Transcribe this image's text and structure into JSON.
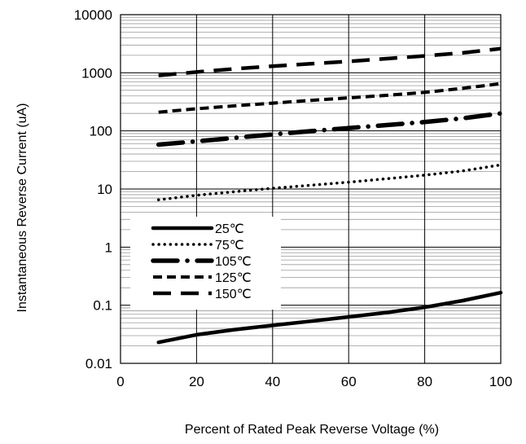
{
  "chart_data": {
    "type": "line",
    "title": "",
    "xlabel": "Percent of Rated Peak Reverse Voltage (%)",
    "ylabel": "Instantaneous Reverse Current (uA)",
    "xlim": [
      0,
      100
    ],
    "ylim": [
      0.01,
      10000
    ],
    "y_scale": "log",
    "grid": true,
    "legend_position": "center-left",
    "x_ticks": [
      "0",
      "20",
      "40",
      "60",
      "80",
      "100"
    ],
    "y_ticks": [
      "0.01",
      "0.1",
      "1",
      "10",
      "100",
      "1000",
      "10000"
    ],
    "series": [
      {
        "name": "25℃",
        "style": "solid",
        "x": [
          10,
          20,
          30,
          40,
          50,
          60,
          70,
          80,
          90,
          100
        ],
        "y": [
          0.023,
          0.031,
          0.038,
          0.045,
          0.053,
          0.063,
          0.075,
          0.092,
          0.12,
          0.165
        ]
      },
      {
        "name": "75℃",
        "style": "dotted",
        "x": [
          10,
          20,
          30,
          40,
          50,
          60,
          70,
          80,
          90,
          100
        ],
        "y": [
          6.5,
          7.8,
          9,
          10.3,
          11.6,
          13.1,
          15,
          17.3,
          20.5,
          26
        ]
      },
      {
        "name": "105℃",
        "style": "dashdot",
        "x": [
          10,
          20,
          30,
          40,
          50,
          60,
          70,
          80,
          90,
          100
        ],
        "y": [
          58,
          66,
          76,
          87,
          99,
          112,
          126,
          142,
          165,
          200
        ]
      },
      {
        "name": "125℃",
        "style": "dashed",
        "x": [
          10,
          20,
          30,
          40,
          50,
          60,
          70,
          80,
          90,
          100
        ],
        "y": [
          210,
          240,
          270,
          300,
          335,
          370,
          410,
          460,
          540,
          650
        ]
      },
      {
        "name": "150℃",
        "style": "longdash",
        "x": [
          10,
          20,
          30,
          40,
          50,
          60,
          70,
          80,
          90,
          100
        ],
        "y": [
          900,
          1030,
          1170,
          1300,
          1430,
          1570,
          1750,
          1950,
          2200,
          2600
        ]
      }
    ]
  }
}
